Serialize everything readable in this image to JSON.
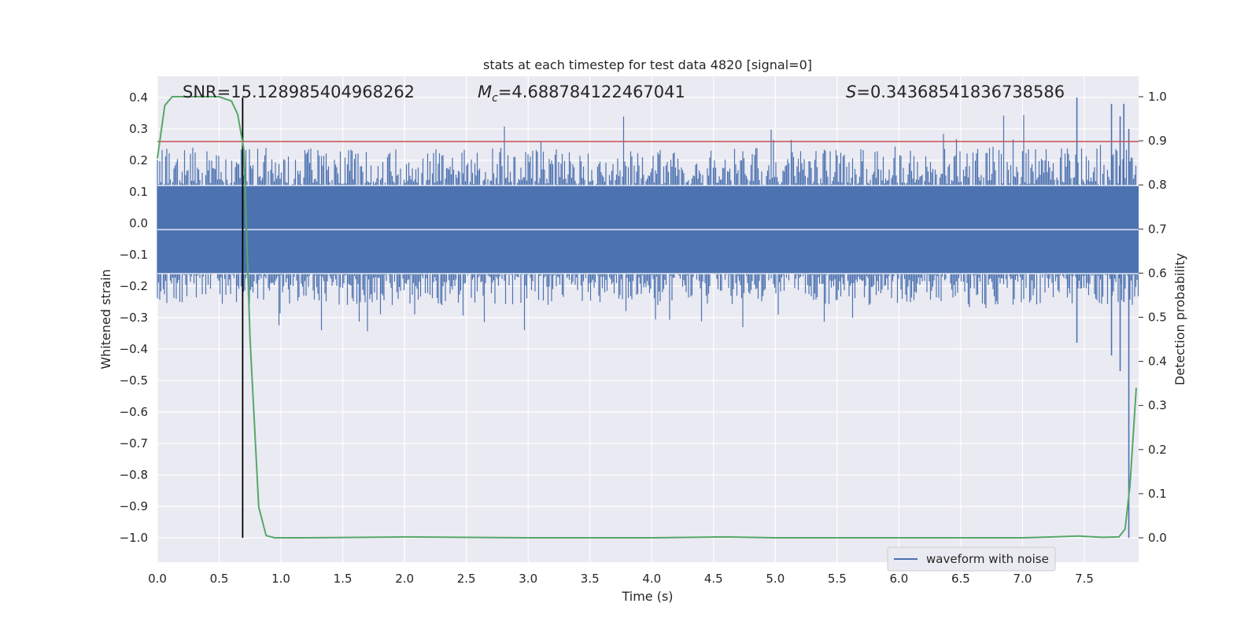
{
  "chart_data": {
    "type": "line",
    "title": "stats at each timestep for test data 4820 [signal=0]",
    "xlabel": "Time (s)",
    "ylabel": "Whitened strain",
    "y2label": "Detection probability",
    "xlim": [
      0.0,
      8.0
    ],
    "ylim": [
      -1.07,
      0.47
    ],
    "y2lim": [
      -0.048,
      1.048
    ],
    "xticks": [
      "0.0",
      "0.5",
      "1.0",
      "1.5",
      "2.0",
      "2.5",
      "3.0",
      "3.5",
      "4.0",
      "4.5",
      "5.0",
      "5.5",
      "6.0",
      "6.5",
      "7.0",
      "7.5"
    ],
    "yticks": [
      "0.4",
      "0.3",
      "0.2",
      "0.1",
      "0.0",
      "−0.1",
      "−0.2",
      "−0.3",
      "−0.4",
      "−0.5",
      "−0.6",
      "−0.7",
      "−0.8",
      "−0.9",
      "−1.0"
    ],
    "y2ticks": [
      "1.0",
      "0.9",
      "0.8",
      "0.7",
      "0.6",
      "0.5",
      "0.4",
      "0.3",
      "0.2",
      "0.1",
      "0.0"
    ],
    "grid": true,
    "legend_position": "lower-right",
    "annotations": {
      "snr": "SNR=15.128985404968262",
      "mc_symbol": "M",
      "mc_sub": "c",
      "mc_value": "=4.688784122467041",
      "s_symbol": "S",
      "s_value": "=0.34368541836738586"
    },
    "series": [
      {
        "name": "waveform with noise",
        "axis": "left",
        "color": "#4c72b0",
        "kind": "noise",
        "band_upper": 0.12,
        "band_lower": -0.16,
        "approx_range": [
          -1.0,
          0.4
        ]
      },
      {
        "axis": "right",
        "color": "#55a868",
        "x": [
          0.0,
          0.06,
          0.12,
          0.3,
          0.5,
          0.6,
          0.65,
          0.7,
          0.75,
          0.82,
          0.88,
          0.95,
          1.2,
          2.0,
          3.0,
          4.0,
          4.6,
          5.0,
          6.0,
          7.0,
          7.25,
          7.45,
          7.65,
          7.78,
          7.83,
          7.87,
          7.92
        ],
        "y": [
          0.86,
          0.98,
          1.0,
          1.0,
          1.0,
          0.99,
          0.96,
          0.88,
          0.45,
          0.07,
          0.005,
          0.0,
          0.0,
          0.002,
          0.0,
          0.0,
          0.002,
          0.0,
          0.0,
          0.0,
          0.002,
          0.004,
          0.001,
          0.002,
          0.02,
          0.12,
          0.34
        ]
      }
    ],
    "threshold": {
      "color": "#c44e52",
      "value": 0.26,
      "axis": "left"
    },
    "marker": {
      "color": "#000000",
      "x": 0.69,
      "y_from": -1.0,
      "y_to": 0.4
    }
  }
}
